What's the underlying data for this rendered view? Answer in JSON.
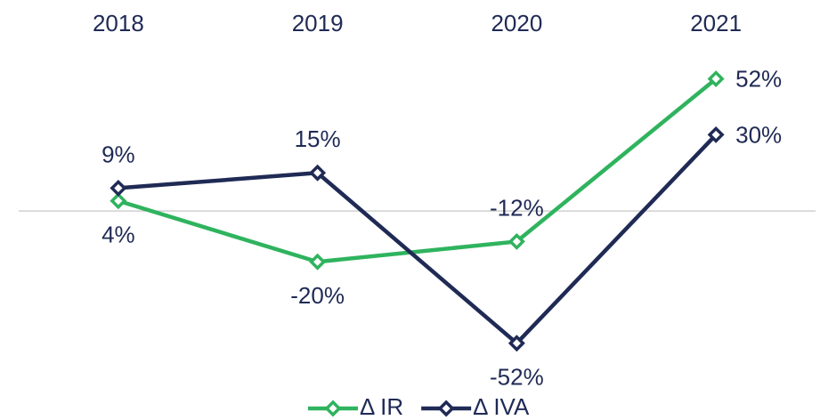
{
  "chart_data": {
    "type": "line",
    "categories": [
      "2018",
      "2019",
      "2020",
      "2021"
    ],
    "series": [
      {
        "name": "Δ IR",
        "color": "#2fb35e",
        "values": [
          4,
          -20,
          -12,
          52
        ],
        "value_labels": [
          "4%",
          "-20%",
          "-12%",
          "52%"
        ]
      },
      {
        "name": "Δ IVA",
        "color": "#1f2a55",
        "values": [
          9,
          15,
          -52,
          30
        ],
        "value_labels": [
          "9%",
          "15%",
          "-52%",
          "30%"
        ]
      }
    ],
    "ylim": [
      -64,
      62
    ]
  }
}
